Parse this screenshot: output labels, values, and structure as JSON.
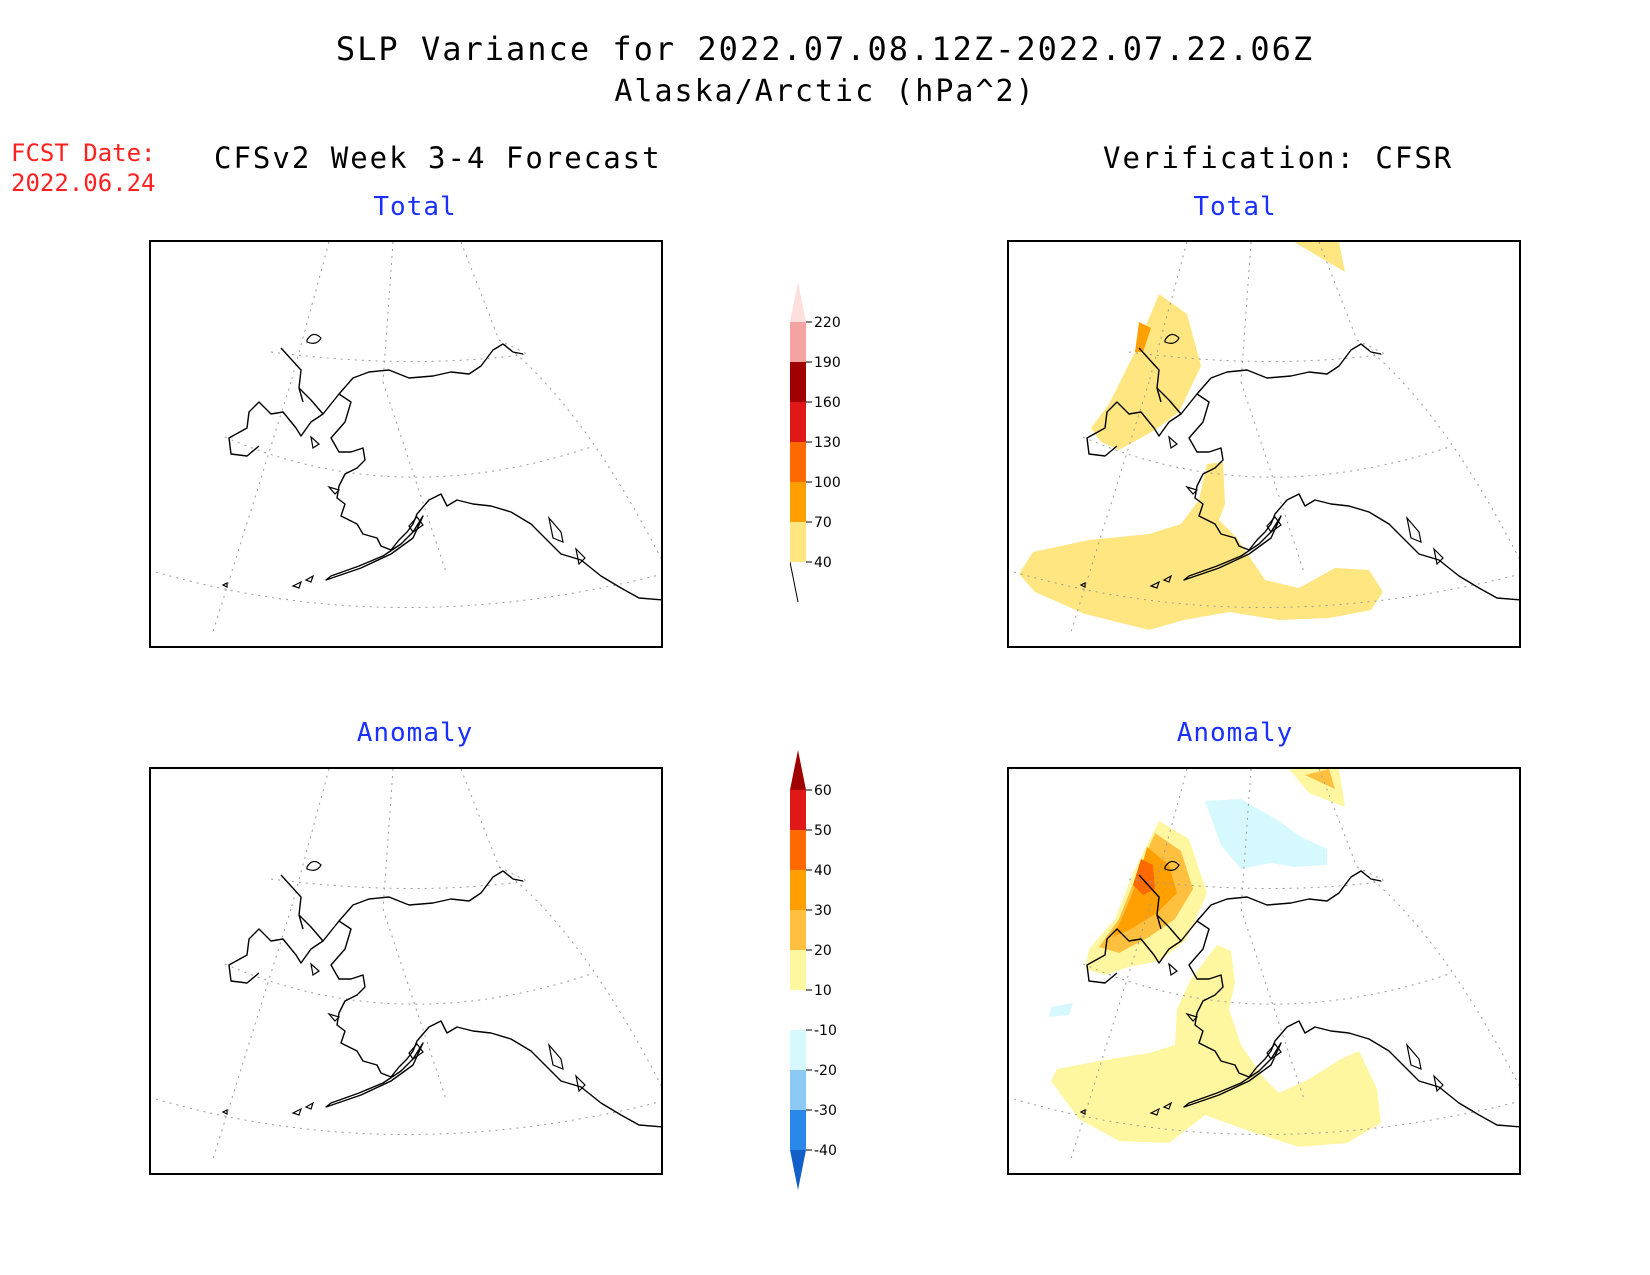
{
  "header": {
    "title_line1": "SLP Variance for 2022.07.08.12Z-2022.07.22.06Z",
    "title_line2": "Alaska/Arctic (hPa^2)",
    "fcst_label": "FCST Date:",
    "fcst_date": "2022.06.24"
  },
  "columns": {
    "left_title": "CFSv2 Week 3-4 Forecast",
    "right_title": "Verification: CFSR"
  },
  "panels": {
    "forecast_total_label": "Total",
    "verification_total_label": "Total",
    "forecast_anomaly_label": "Anomaly",
    "verification_anomaly_label": "Anomaly"
  },
  "colorbar_total": {
    "levels": [
      "220",
      "190",
      "160",
      "130",
      "100",
      "70",
      "40"
    ],
    "colors": [
      "#fde0dc",
      "#f4a3a3",
      "#a00000",
      "#e01818",
      "#ff6a00",
      "#ffa000",
      "#ffe680"
    ]
  },
  "colorbar_anomaly": {
    "levels": [
      "60",
      "50",
      "40",
      "30",
      "20",
      "10",
      "-10",
      "-20",
      "-30",
      "-40"
    ],
    "colors": [
      "#a00000",
      "#e01818",
      "#ff6a00",
      "#ffa000",
      "#ffc040",
      "#fff6a0",
      "#ffffff",
      "#d6f8ff",
      "#8ccaf4",
      "#2a88e8",
      "#1060c8"
    ]
  }
}
